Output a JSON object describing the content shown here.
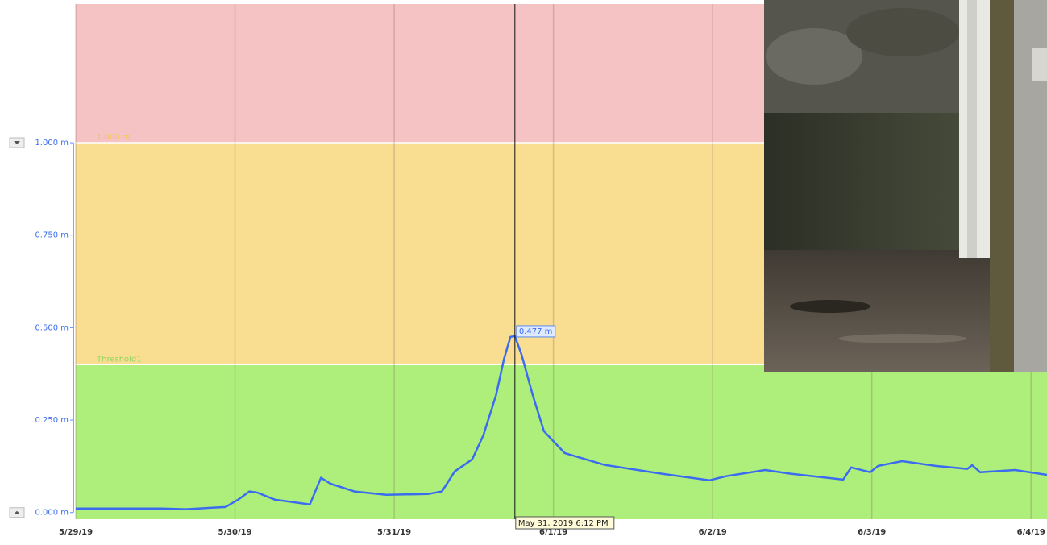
{
  "chart_data": {
    "type": "line",
    "x": [
      0,
      0.54,
      0.69,
      0.94,
      1.02,
      1.09,
      1.14,
      1.25,
      1.47,
      1.54,
      1.6,
      1.75,
      1.95,
      2.21,
      2.3,
      2.38,
      2.49,
      2.56,
      2.64,
      2.69,
      2.73,
      2.758,
      2.8,
      2.87,
      2.94,
      3.07,
      3.32,
      3.68,
      3.98,
      4.08,
      4.33,
      4.49,
      4.82,
      4.87,
      4.99,
      5.04,
      5.19,
      5.4,
      5.6,
      5.63,
      5.68,
      5.9,
      6.1
    ],
    "series": [
      {
        "color": "#3b6cf0",
        "values": [
          0.011,
          0.011,
          0.009,
          0.015,
          0.035,
          0.057,
          0.054,
          0.035,
          0.022,
          0.094,
          0.078,
          0.057,
          0.048,
          0.05,
          0.057,
          0.111,
          0.144,
          0.209,
          0.318,
          0.416,
          0.475,
          0.477,
          0.427,
          0.318,
          0.22,
          0.161,
          0.129,
          0.105,
          0.087,
          0.098,
          0.115,
          0.105,
          0.089,
          0.122,
          0.109,
          0.126,
          0.139,
          0.126,
          0.118,
          0.128,
          0.109,
          0.115,
          0.102
        ]
      }
    ],
    "xlim": [
      0,
      6.1
    ],
    "xticks": [
      {
        "value": 0,
        "label": "5/29/19"
      },
      {
        "value": 1,
        "label": "5/30/19"
      },
      {
        "value": 2,
        "label": "5/31/19"
      },
      {
        "value": 3,
        "label": "6/1/19"
      },
      {
        "value": 4,
        "label": "6/2/19"
      },
      {
        "value": 5,
        "label": "6/3/19"
      },
      {
        "value": 6,
        "label": "6/4/19"
      }
    ],
    "ylim": [
      -0.018,
      1.375
    ],
    "yticks": [
      {
        "value": 0,
        "label": "0.000 m"
      },
      {
        "value": 0.25,
        "label": "0.250 m"
      },
      {
        "value": 0.5,
        "label": "0.500 m"
      },
      {
        "value": 0.75,
        "label": "0.750 m"
      },
      {
        "value": 1,
        "label": "1.000 m"
      }
    ],
    "thresholds": [
      {
        "value": 0.4,
        "label": "Threshold1",
        "color": "#aeef7b",
        "label_color": "#8fd860"
      },
      {
        "value": 1.0,
        "label": "1.000 m",
        "color": "#f9dd91",
        "label_color": "#f2c55a"
      }
    ],
    "top_band_color": "#f5c3c3",
    "grid": true,
    "cursor": {
      "x": 2.758,
      "label": "May 31, 2019 6:12 PM",
      "value": 0.477,
      "value_label": "0.477 m"
    }
  }
}
